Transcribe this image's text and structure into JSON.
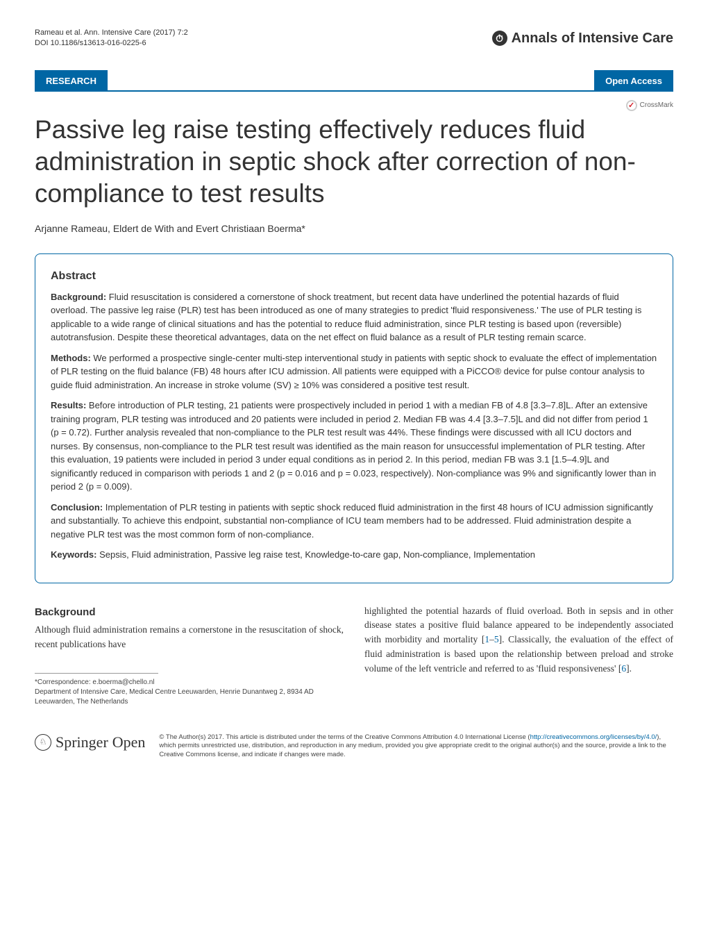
{
  "header": {
    "citation_line1": "Rameau et al. Ann. Intensive Care (2017) 7:2",
    "citation_line2": "DOI 10.1186/s13613-016-0225-6",
    "journal_name": "Annals of Intensive Care",
    "journal_glyph": "⏱"
  },
  "banner": {
    "research_label": "RESEARCH",
    "open_access_label": "Open Access",
    "crossmark_label": "CrossMark"
  },
  "title": "Passive leg raise testing effectively reduces fluid administration in septic shock after correction of non-compliance to test results",
  "authors": "Arjanne Rameau, Eldert de With and Evert Christiaan Boerma*",
  "abstract": {
    "heading": "Abstract",
    "background_label": "Background:",
    "background_text": " Fluid resuscitation is considered a cornerstone of shock treatment, but recent data have underlined the potential hazards of fluid overload. The passive leg raise (PLR) test has been introduced as one of many strategies to predict 'fluid responsiveness.' The use of PLR testing is applicable to a wide range of clinical situations and has the potential to reduce fluid administration, since PLR testing is based upon (reversible) autotransfusion. Despite these theoretical advantages, data on the net effect on fluid balance as a result of PLR testing remain scarce.",
    "methods_label": "Methods:",
    "methods_text": " We performed a prospective single-center multi-step interventional study in patients with septic shock to evaluate the effect of implementation of PLR testing on the fluid balance (FB) 48 hours after ICU admission. All patients were equipped with a PiCCO® device for pulse contour analysis to guide fluid administration. An increase in stroke volume (SV) ≥ 10% was considered a positive test result.",
    "results_label": "Results:",
    "results_text": " Before introduction of PLR testing, 21 patients were prospectively included in period 1 with a median FB of 4.8 [3.3–7.8]L. After an extensive training program, PLR testing was introduced and 20 patients were included in period 2. Median FB was 4.4 [3.3–7.5]L and did not differ from period 1 (p = 0.72). Further analysis revealed that non-compliance to the PLR test result was 44%. These findings were discussed with all ICU doctors and nurses. By consensus, non-compliance to the PLR test result was identified as the main reason for unsuccessful implementation of PLR testing. After this evaluation, 19 patients were included in period 3 under equal conditions as in period 2. In this period, median FB was 3.1 [1.5–4.9]L and significantly reduced in comparison with periods 1 and 2 (p = 0.016 and p = 0.023, respectively). Non-compliance was 9% and significantly lower than in period 2 (p = 0.009).",
    "conclusion_label": "Conclusion:",
    "conclusion_text": " Implementation of PLR testing in patients with septic shock reduced fluid administration in the first 48 hours of ICU admission significantly and substantially. To achieve this endpoint, substantial non-compliance of ICU team members had to be addressed. Fluid administration despite a negative PLR test was the most common form of non-compliance.",
    "keywords_label": "Keywords:",
    "keywords_text": " Sepsis, Fluid administration, Passive leg raise test, Knowledge-to-care gap, Non-compliance, Implementation"
  },
  "body": {
    "background_heading": "Background",
    "col1_text": "Although fluid administration remains a cornerstone in the resuscitation of shock, recent publications have",
    "col2_text_pre": "highlighted the potential hazards of fluid overload. Both in sepsis and in other disease states a positive fluid balance appeared to be independently associated with morbidity and mortality [",
    "ref1": "1",
    "ref_dash": "–",
    "ref5": "5",
    "col2_text_mid": "]. Classically, the evaluation of the effect of fluid administration is based upon the relationship between preload and stroke volume of the left ventricle and referred to as 'fluid responsiveness' [",
    "ref6": "6",
    "col2_text_end": "]."
  },
  "footnote": {
    "correspondence": "*Correspondence: e.boerma@chello.nl",
    "affiliation": "Department of Intensive Care, Medical Centre Leeuwarden, Henrie Dunantweg 2, 8934 AD Leeuwarden, The Netherlands"
  },
  "footer": {
    "springer_text": "Springer",
    "springer_open": "Open",
    "license_text_pre": "© The Author(s) 2017. This article is distributed under the terms of the Creative Commons Attribution 4.0 International License (",
    "license_url": "http://creativecommons.org/licenses/by/4.0/",
    "license_text_post": "), which permits unrestricted use, distribution, and reproduction in any medium, provided you give appropriate credit to the original author(s) and the source, provide a link to the Creative Commons license, and indicate if changes were made."
  },
  "colors": {
    "brand_blue": "#0066a4",
    "text_color": "#333333",
    "red": "#d4212a"
  }
}
